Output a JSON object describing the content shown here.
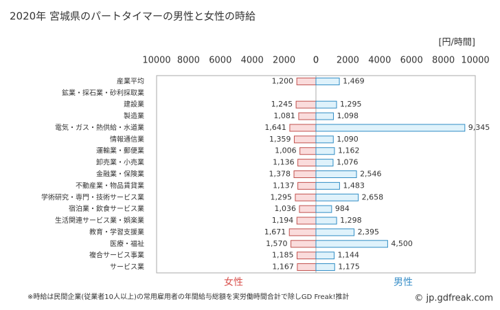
{
  "chart_data": {
    "type": "butterfly",
    "title": "2020年 宮城県のパートタイマーの男性と女性の時給",
    "unit": "[円/時間]",
    "note": "※時給は民間企業(従業者10人以上)の常用雇用者の年間給与総額を実労働時間合計で除しGD Freak!推計",
    "source": "© jp.gdfreak.com",
    "categories": [
      "産業平均",
      "鉱業・採石業・砂利採取業",
      "建設業",
      "製造業",
      "電気・ガス・熱供給・水道業",
      "情報通信業",
      "運輸業・郵便業",
      "卸売業・小売業",
      "金融業・保険業",
      "不動産業・物品賃貸業",
      "学術研究・専門・技術サービス業",
      "宿泊業・飲食サービス業",
      "生活関連サービス業・娯楽業",
      "教育・学習支援業",
      "医療・福祉",
      "複合サービス事業",
      "サービス業"
    ],
    "series": [
      {
        "name": "女性",
        "color": "#fadcdc",
        "edge": "#c0504d",
        "label_color": "#d9534f",
        "values": [
          1200,
          null,
          1245,
          1081,
          1641,
          1359,
          1006,
          1136,
          1378,
          1137,
          1295,
          1036,
          1194,
          1671,
          1570,
          1185,
          1167
        ],
        "value_labels": [
          "1,200",
          null,
          "1,245",
          "1,081",
          "1,641",
          "1,359",
          "1,006",
          "1,136",
          "1,378",
          "1,137",
          "1,295",
          "1,036",
          "1,194",
          "1,671",
          "1,570",
          "1,185",
          "1,167"
        ]
      },
      {
        "name": "男性",
        "color": "#dff2fb",
        "edge": "#2f8cc4",
        "label_color": "#3a8fc8",
        "values": [
          1469,
          null,
          1295,
          1098,
          9345,
          1090,
          1162,
          1076,
          2546,
          1483,
          2658,
          984,
          1298,
          2395,
          4500,
          1144,
          1175
        ],
        "value_labels": [
          "1,469",
          null,
          "1,295",
          "1,098",
          "9,345",
          "1,090",
          "1,162",
          "1,076",
          "2,546",
          "1,483",
          "2,658",
          "984",
          "1,298",
          "2,395",
          "4,500",
          "1,144",
          "1,175"
        ]
      }
    ],
    "xlim": [
      0,
      10000
    ],
    "xticks": [
      0,
      2000,
      4000,
      6000,
      8000,
      10000
    ]
  }
}
